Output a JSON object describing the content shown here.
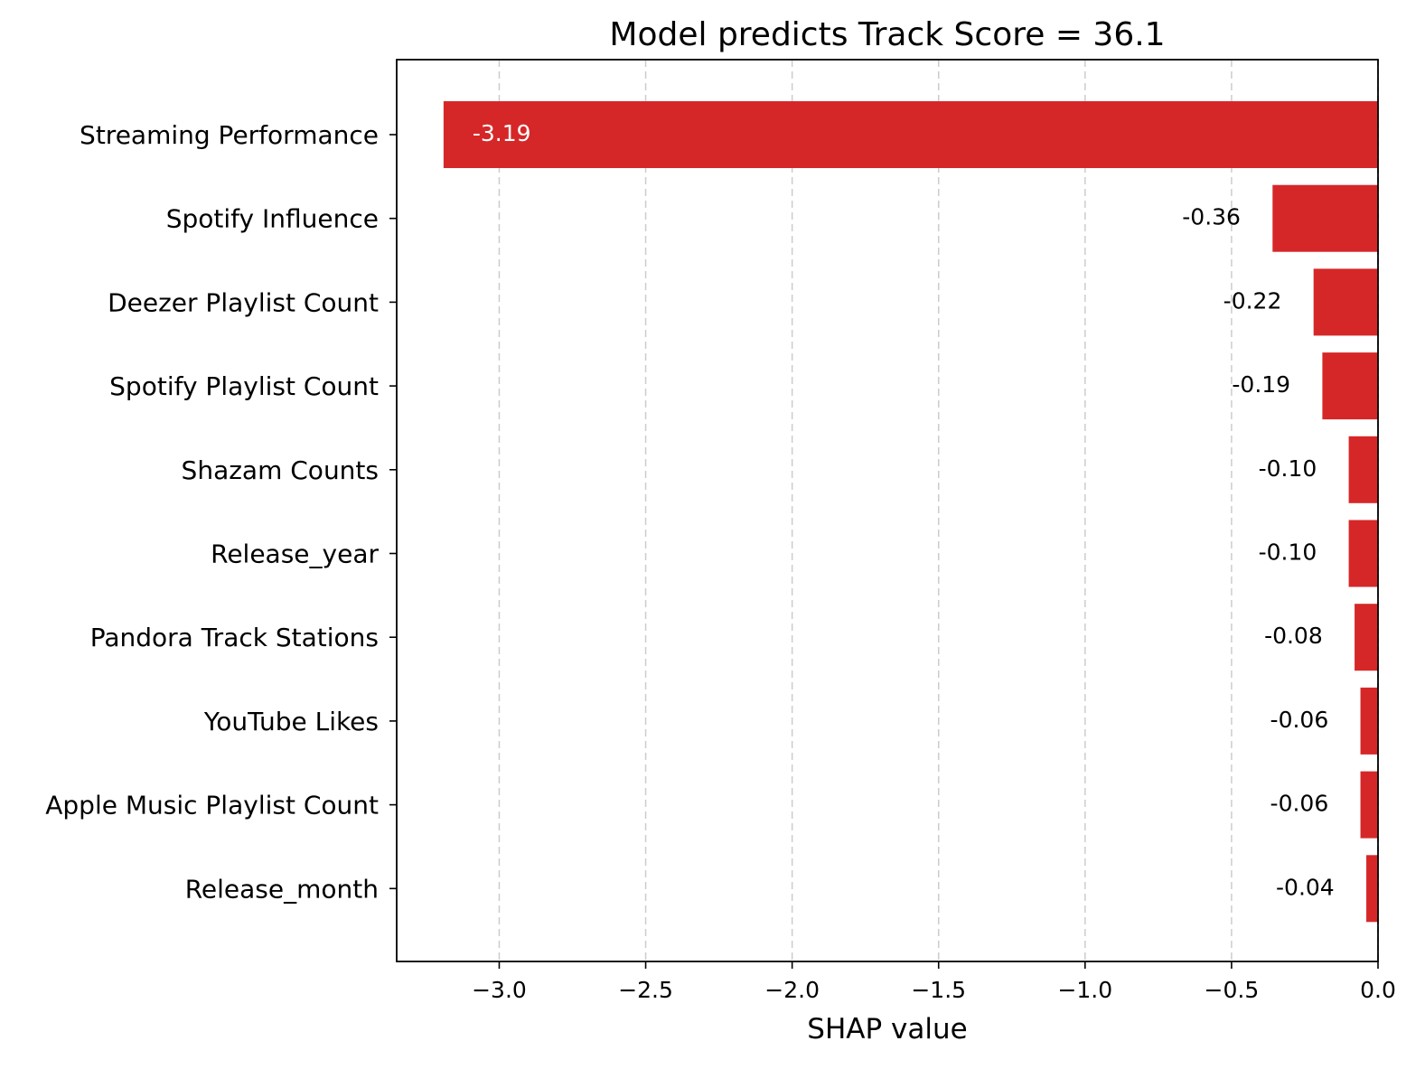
{
  "chart_data": {
    "type": "bar",
    "orientation": "horizontal",
    "title": "Model predicts Track Score = 36.1",
    "xlabel": "SHAP value",
    "ylabel": "",
    "categories": [
      "Streaming Performance",
      "Spotify Influence",
      "Deezer Playlist Count",
      "Spotify Playlist Count",
      "Shazam Counts",
      "Release_year",
      "Pandora Track Stations",
      "YouTube Likes",
      "Apple Music Playlist Count",
      "Release_month"
    ],
    "values": [
      -3.19,
      -0.36,
      -0.22,
      -0.19,
      -0.1,
      -0.1,
      -0.08,
      -0.06,
      -0.06,
      -0.04
    ],
    "value_labels": [
      "-3.19",
      "-0.36",
      "-0.22",
      "-0.19",
      "-0.10",
      "-0.10",
      "-0.08",
      "-0.06",
      "-0.06",
      "-0.04"
    ],
    "xlim": [
      -3.35,
      0.0
    ],
    "xticks": [
      -3.0,
      -2.5,
      -2.0,
      -1.5,
      -1.0,
      -0.5,
      0.0
    ],
    "xtick_labels": [
      "−3.0",
      "−2.5",
      "−2.0",
      "−1.5",
      "−1.0",
      "−0.5",
      "0.0"
    ],
    "grid": "x-dashed",
    "legend": "none",
    "bar_color": "#d62728",
    "inside_label_color": "#ffffff",
    "outside_label_color": "#000000"
  }
}
